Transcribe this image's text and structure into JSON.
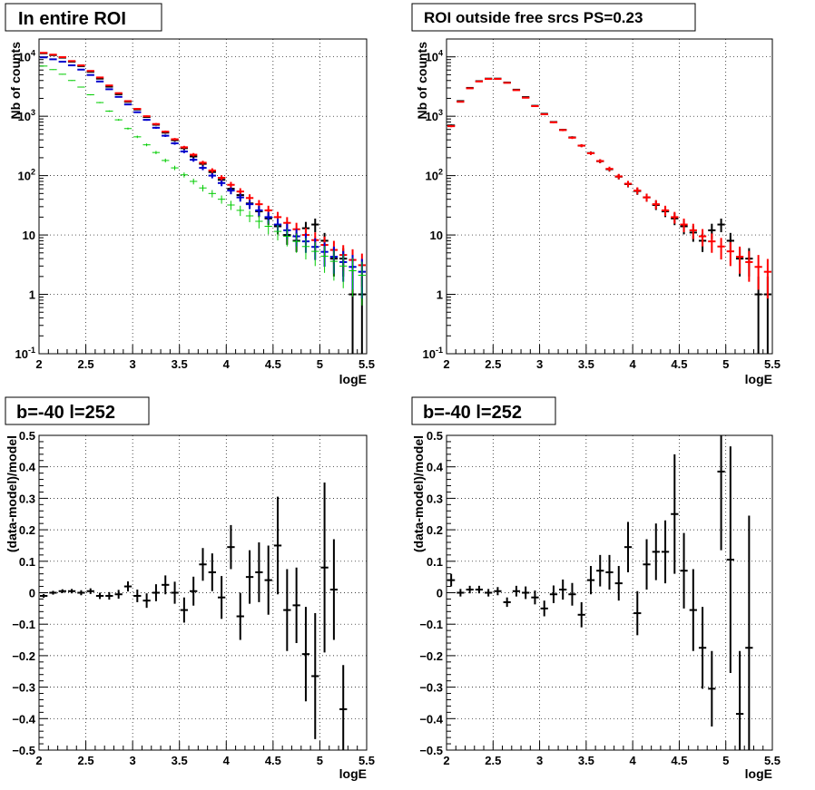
{
  "colors": {
    "data": "#000000",
    "model": "#ff0000",
    "blue": "#0000cc",
    "green": "#00cc00"
  },
  "panels": {
    "top_left": {
      "title": "In entire ROI",
      "xlabel": "logE",
      "ylabel": "Nb of counts"
    },
    "top_right": {
      "title": "ROI outside free srcs PS=0.23",
      "xlabel": "logE",
      "ylabel": "Nb of counts"
    },
    "bottom_left": {
      "title": "b=-40 l=252",
      "xlabel": "logE",
      "ylabel": "(data-model)/model"
    },
    "bottom_right": {
      "title": "b=-40 l=252",
      "xlabel": "logE",
      "ylabel": "(data-model)/model"
    }
  },
  "chart_data": [
    {
      "type": "scatter",
      "title": "In entire ROI",
      "xlabel": "logE",
      "ylabel": "Nb of counts",
      "xlim": [
        2,
        5.5
      ],
      "ylim": [
        0.1,
        20000
      ],
      "yscale": "log",
      "grid": true,
      "x_ticks": [
        "2",
        "2.5",
        "3",
        "3.5",
        "4",
        "4.5",
        "5",
        "5.5"
      ],
      "y_ticks": [
        "10^-1",
        "1",
        "10",
        "10^2",
        "10^3",
        "10^4"
      ],
      "series": [
        {
          "color": "#000000",
          "x": [
            2.05,
            2.15,
            2.25,
            2.35,
            2.45,
            2.55,
            2.65,
            2.75,
            2.85,
            2.95,
            3.05,
            3.15,
            3.25,
            3.35,
            3.45,
            3.55,
            3.65,
            3.75,
            3.85,
            3.95,
            4.05,
            4.15,
            4.25,
            4.35,
            4.45,
            4.55,
            4.65,
            4.75,
            4.85,
            4.95,
            5.05,
            5.15,
            5.25,
            5.35,
            5.45
          ],
          "y": [
            11500,
            10700,
            9700,
            8300,
            7000,
            5600,
            4300,
            3150,
            2350,
            1750,
            1300,
            970,
            720,
            530,
            395,
            290,
            210,
            158,
            115,
            85,
            60,
            47,
            34,
            25,
            19,
            14,
            10,
            8,
            13,
            15,
            8,
            4,
            4,
            1,
            1
          ]
        },
        {
          "color": "#ff0000",
          "x": [
            2.05,
            2.15,
            2.25,
            2.35,
            2.45,
            2.55,
            2.65,
            2.75,
            2.85,
            2.95,
            3.05,
            3.15,
            3.25,
            3.35,
            3.45,
            3.55,
            3.65,
            3.75,
            3.85,
            3.95,
            4.05,
            4.15,
            4.25,
            4.35,
            4.45,
            4.55,
            4.65,
            4.75,
            4.85,
            4.95,
            5.05,
            5.15,
            5.25,
            5.35,
            5.45
          ],
          "y": [
            11700,
            10900,
            9900,
            8500,
            7200,
            5800,
            4500,
            3300,
            2450,
            1800,
            1330,
            1000,
            740,
            550,
            410,
            300,
            225,
            165,
            122,
            92,
            70,
            54,
            42,
            33,
            26,
            20,
            16,
            12.5,
            10,
            8.2,
            6.8,
            5.6,
            4.6,
            3.8,
            3.1
          ]
        },
        {
          "color": "#0000cc",
          "x": [
            2.05,
            2.15,
            2.25,
            2.35,
            2.45,
            2.55,
            2.65,
            2.75,
            2.85,
            2.95,
            3.05,
            3.15,
            3.25,
            3.35,
            3.45,
            3.55,
            3.65,
            3.75,
            3.85,
            3.95,
            4.05,
            4.15,
            4.25,
            4.35,
            4.45,
            4.55,
            4.65,
            4.75,
            4.85,
            4.95,
            5.05,
            5.15,
            5.25,
            5.35,
            5.45
          ],
          "y": [
            9800,
            9100,
            8300,
            7200,
            6100,
            4950,
            3850,
            2850,
            2120,
            1580,
            1170,
            870,
            640,
            470,
            350,
            255,
            185,
            135,
            100,
            75,
            56,
            43,
            33,
            26,
            20,
            15,
            12,
            9.5,
            7.8,
            6.3,
            5.2,
            4.3,
            3.5,
            2.9,
            2.4
          ]
        },
        {
          "color": "#00cc00",
          "x": [
            2.05,
            2.15,
            2.25,
            2.35,
            2.45,
            2.55,
            2.65,
            2.75,
            2.85,
            2.95,
            3.05,
            3.15,
            3.25,
            3.35,
            3.45,
            3.55,
            3.65,
            3.75,
            3.85,
            3.95,
            4.05,
            4.15,
            4.25,
            4.35,
            4.45,
            4.55,
            4.65,
            4.75,
            4.85,
            4.95,
            5.05,
            5.15,
            5.25,
            5.35,
            5.45
          ],
          "y": [
            7000,
            6100,
            5100,
            4000,
            3100,
            2300,
            1700,
            1220,
            870,
            620,
            450,
            330,
            245,
            180,
            135,
            103,
            80,
            62,
            50,
            40,
            32,
            26,
            21,
            17,
            14,
            11.5,
            9.5,
            7.8,
            6.4,
            5.3,
            4.4,
            3.6,
            3,
            2.5,
            2.1
          ]
        }
      ]
    },
    {
      "type": "scatter",
      "title": "ROI outside free srcs PS=0.23",
      "xlabel": "logE",
      "ylabel": "Nb of counts",
      "xlim": [
        2,
        5.5
      ],
      "ylim": [
        0.1,
        20000
      ],
      "yscale": "log",
      "grid": true,
      "x_ticks": [
        "2",
        "2.5",
        "3",
        "3.5",
        "4",
        "4.5",
        "5",
        "5.5"
      ],
      "y_ticks": [
        "10^-1",
        "1",
        "10",
        "10^2",
        "10^3",
        "10^4"
      ],
      "series": [
        {
          "color": "#000000",
          "x": [
            2.05,
            2.15,
            2.25,
            2.35,
            2.45,
            2.55,
            2.65,
            2.75,
            2.85,
            2.95,
            3.05,
            3.15,
            3.25,
            3.35,
            3.45,
            3.55,
            3.65,
            3.75,
            3.85,
            3.95,
            4.05,
            4.15,
            4.25,
            4.35,
            4.45,
            4.55,
            4.65,
            4.75,
            4.85,
            4.95,
            5.05,
            5.15,
            5.25,
            5.35,
            5.45
          ],
          "y": [
            700,
            1800,
            3000,
            3900,
            4300,
            4300,
            3700,
            2800,
            2100,
            1500,
            1100,
            800,
            590,
            440,
            320,
            240,
            175,
            128,
            96,
            72,
            55,
            43,
            32,
            25,
            19,
            14,
            11,
            8,
            12,
            15,
            8,
            4,
            4,
            1,
            1
          ]
        },
        {
          "color": "#ff0000",
          "x": [
            2.05,
            2.15,
            2.25,
            2.35,
            2.45,
            2.55,
            2.65,
            2.75,
            2.85,
            2.95,
            3.05,
            3.15,
            3.25,
            3.35,
            3.45,
            3.55,
            3.65,
            3.75,
            3.85,
            3.95,
            4.05,
            4.15,
            4.25,
            4.35,
            4.45,
            4.55,
            4.65,
            4.75,
            4.85,
            4.95,
            5.05,
            5.15,
            5.25,
            5.35,
            5.45
          ],
          "y": [
            680,
            1750,
            2950,
            3850,
            4250,
            4250,
            3650,
            2750,
            2050,
            1480,
            1080,
            790,
            585,
            435,
            320,
            238,
            176,
            130,
            97,
            73,
            56,
            43,
            33,
            26,
            20,
            15,
            12,
            9.5,
            7.8,
            6.4,
            5.3,
            4.3,
            3.5,
            2.9,
            2.4
          ]
        }
      ]
    },
    {
      "type": "scatter",
      "title": "b=-40 l=252",
      "xlabel": "logE",
      "ylabel": "(data-model)/model",
      "xlim": [
        2,
        5.5
      ],
      "ylim": [
        -0.5,
        0.5
      ],
      "grid": true,
      "x_ticks": [
        "2",
        "2.5",
        "3",
        "3.5",
        "4",
        "4.5",
        "5",
        "5.5"
      ],
      "y_ticks": [
        "−0.5",
        "−0.4",
        "−0.3",
        "−0.2",
        "−0.1",
        "0",
        "0.1",
        "0.2",
        "0.3",
        "0.4",
        "0.5"
      ],
      "series": [
        {
          "color": "#000000",
          "x": [
            2.05,
            2.15,
            2.25,
            2.35,
            2.45,
            2.55,
            2.65,
            2.75,
            2.85,
            2.95,
            3.05,
            3.15,
            3.25,
            3.35,
            3.45,
            3.55,
            3.65,
            3.75,
            3.85,
            3.95,
            4.05,
            4.15,
            4.25,
            4.35,
            4.45,
            4.55,
            4.65,
            4.75,
            4.85,
            4.95,
            5.05,
            5.15,
            5.25
          ],
          "y": [
            -0.01,
            0.0,
            0.005,
            0.005,
            0.0,
            0.005,
            -0.01,
            -0.01,
            -0.005,
            0.02,
            -0.01,
            -0.025,
            0.0,
            0.025,
            0.0,
            -0.055,
            0.005,
            0.09,
            0.065,
            -0.015,
            0.145,
            -0.075,
            0.05,
            0.065,
            0.04,
            0.15,
            -0.055,
            -0.04,
            -0.195,
            -0.265,
            0.08,
            0.01,
            -0.37
          ],
          "err": [
            0.006,
            0.006,
            0.006,
            0.007,
            0.008,
            0.009,
            0.01,
            0.012,
            0.014,
            0.016,
            0.02,
            0.023,
            0.027,
            0.03,
            0.035,
            0.04,
            0.046,
            0.052,
            0.06,
            0.068,
            0.07,
            0.075,
            0.085,
            0.095,
            0.11,
            0.155,
            0.13,
            0.12,
            0.15,
            0.2,
            0.27,
            0.16,
            0.14
          ]
        }
      ]
    },
    {
      "type": "scatter",
      "title": "b=-40 l=252",
      "xlabel": "logE",
      "ylabel": "(data-model)/model",
      "xlim": [
        2,
        5.5
      ],
      "ylim": [
        -0.5,
        0.5
      ],
      "grid": true,
      "x_ticks": [
        "2",
        "2.5",
        "3",
        "3.5",
        "4",
        "4.5",
        "5",
        "5.5"
      ],
      "y_ticks": [
        "−0.5",
        "−0.4",
        "−0.3",
        "−0.2",
        "−0.1",
        "0",
        "0.1",
        "0.2",
        "0.3",
        "0.4",
        "0.5"
      ],
      "series": [
        {
          "color": "#000000",
          "x": [
            2.05,
            2.15,
            2.25,
            2.35,
            2.45,
            2.55,
            2.65,
            2.75,
            2.85,
            2.95,
            3.05,
            3.15,
            3.25,
            3.35,
            3.45,
            3.55,
            3.65,
            3.75,
            3.85,
            3.95,
            4.05,
            4.15,
            4.25,
            4.35,
            4.45,
            4.55,
            4.65,
            4.75,
            4.85,
            4.95,
            5.05,
            5.15,
            5.25
          ],
          "y": [
            0.04,
            0.0,
            0.01,
            0.01,
            0.0,
            0.005,
            -0.03,
            0.005,
            0.0,
            -0.015,
            -0.05,
            -0.005,
            0.01,
            -0.005,
            -0.07,
            0.04,
            0.07,
            0.065,
            0.03,
            0.145,
            -0.065,
            0.09,
            0.13,
            0.13,
            0.25,
            0.07,
            -0.055,
            -0.175,
            -0.305,
            0.385,
            0.105,
            -0.385,
            -0.175
          ],
          "err": [
            0.02,
            0.012,
            0.012,
            0.012,
            0.012,
            0.013,
            0.015,
            0.017,
            0.02,
            0.022,
            0.025,
            0.028,
            0.032,
            0.036,
            0.04,
            0.045,
            0.05,
            0.055,
            0.055,
            0.08,
            0.07,
            0.08,
            0.09,
            0.1,
            0.19,
            0.12,
            0.13,
            0.13,
            0.12,
            0.25,
            0.36,
            0.2,
            0.42
          ]
        }
      ]
    }
  ]
}
